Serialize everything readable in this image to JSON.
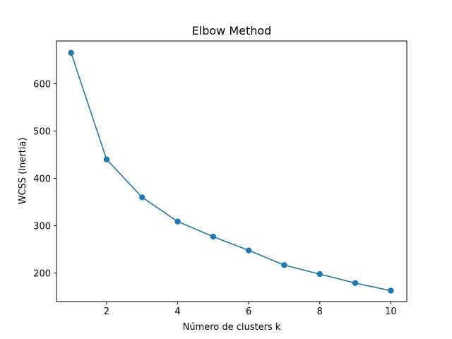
{
  "chart_data": {
    "type": "line",
    "title": "Elbow Method",
    "xlabel": "Número de clusters k",
    "ylabel": "WCSS (Inertia)",
    "x": [
      1,
      2,
      3,
      4,
      5,
      6,
      7,
      8,
      9,
      10
    ],
    "series": [
      {
        "values": [
          665,
          440,
          360,
          309,
          277,
          248,
          217,
          198,
          179,
          163
        ],
        "color": "#1f77b4",
        "marker": "circle"
      }
    ],
    "xlim": [
      0.59,
      10.45
    ],
    "ylim": [
      140,
      690
    ],
    "xticks": [
      2,
      4,
      6,
      8,
      10
    ],
    "yticks": [
      200,
      300,
      400,
      500,
      600
    ],
    "grid": false
  }
}
